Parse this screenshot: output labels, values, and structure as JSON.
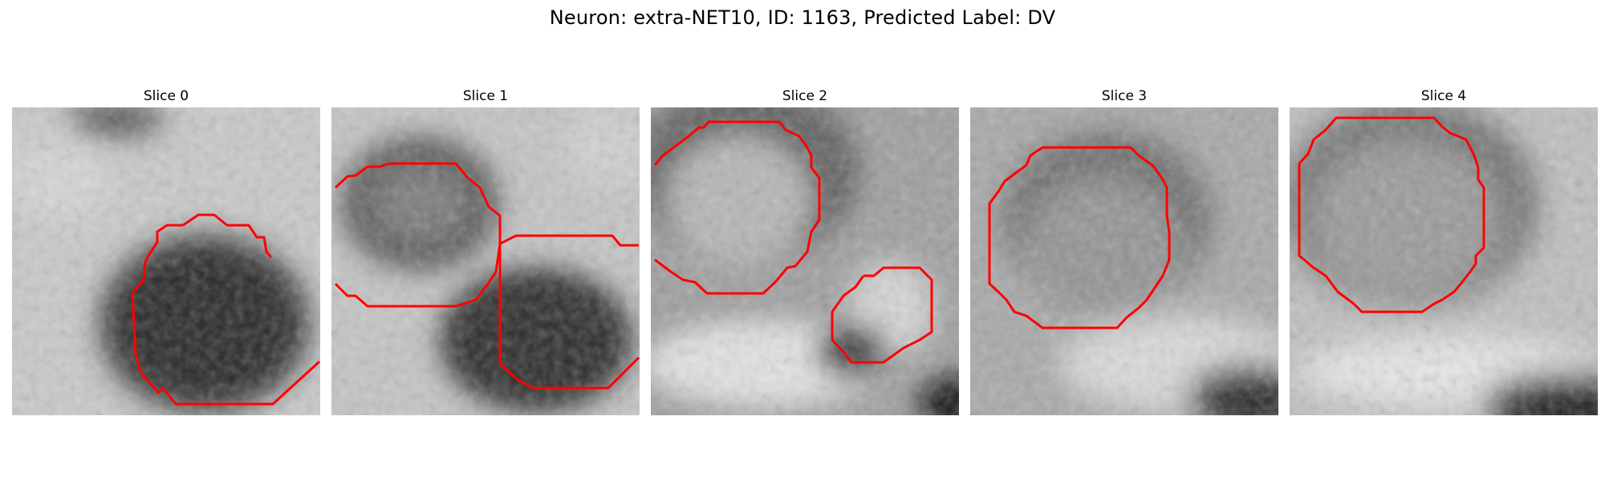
{
  "figure": {
    "title": "Neuron: extra-NET10, ID: 1163, Predicted Label: DV"
  },
  "panels": [
    {
      "title": "Slice 0"
    },
    {
      "title": "Slice 1"
    },
    {
      "title": "Slice 2"
    },
    {
      "title": "Slice 3"
    },
    {
      "title": "Slice 4"
    }
  ],
  "colors": {
    "contour": "#ff0000",
    "background": "#ffffff"
  }
}
